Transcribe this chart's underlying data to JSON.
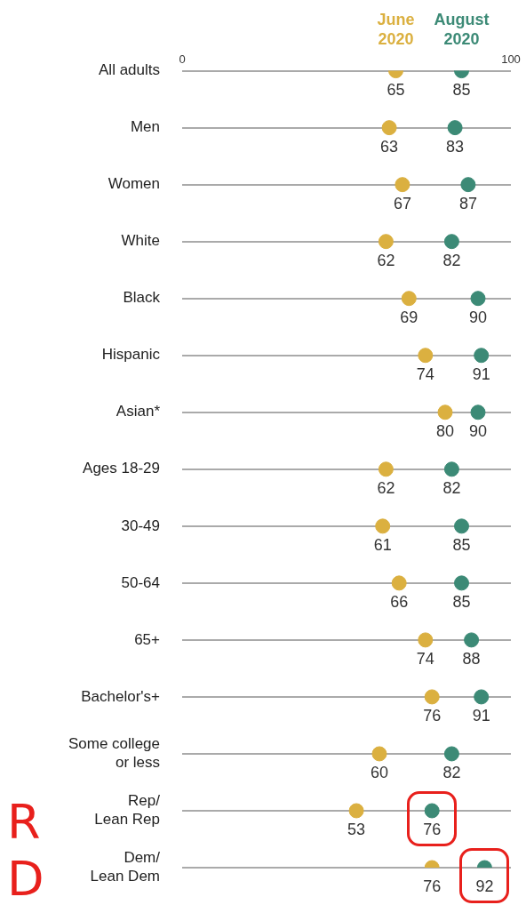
{
  "chart_data": {
    "type": "scatter",
    "orientation": "horizontal",
    "categories": [
      "All adults",
      "Men",
      "Women",
      "White",
      "Black",
      "Hispanic",
      "Asian*",
      "Ages 18-29",
      "30-49",
      "50-64",
      "65+",
      "Bachelor's+",
      "Some college\nor less",
      "Rep/\nLean Rep",
      "Dem/\nLean Dem"
    ],
    "series": [
      {
        "name": "June\n2020",
        "color": "#dbb040",
        "values": [
          65,
          63,
          67,
          62,
          69,
          74,
          80,
          62,
          61,
          66,
          74,
          76,
          60,
          53,
          76
        ]
      },
      {
        "name": "August\n2020",
        "color": "#3c8a76",
        "values": [
          85,
          83,
          87,
          82,
          90,
          91,
          90,
          82,
          85,
          85,
          88,
          91,
          82,
          76,
          92
        ]
      }
    ],
    "xlim": [
      0,
      100
    ],
    "xticks": [
      0,
      100
    ],
    "grid": "y",
    "marker": "circle",
    "data_labels": true,
    "annotations": [
      "R",
      "D"
    ]
  }
}
